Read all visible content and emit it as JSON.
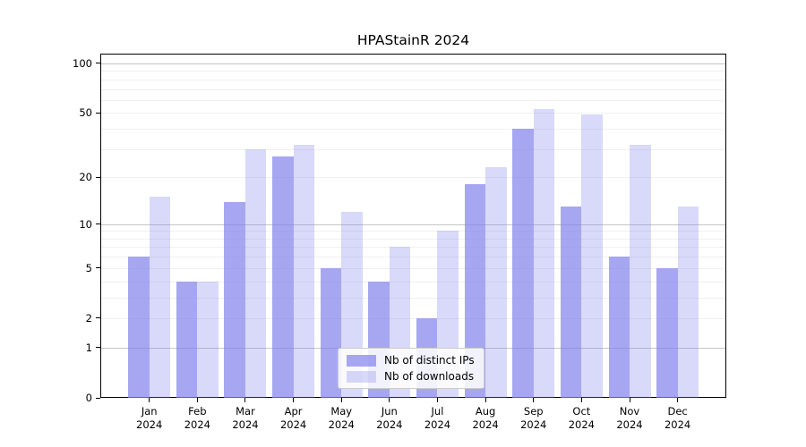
{
  "title": "HPAStainR 2024",
  "chart_data": {
    "type": "bar",
    "title": "HPAStainR 2024",
    "year": "2024",
    "categories": [
      "Jan",
      "Feb",
      "Mar",
      "Apr",
      "May",
      "Jun",
      "Jul",
      "Aug",
      "Sep",
      "Oct",
      "Nov",
      "Dec"
    ],
    "series": [
      {
        "name": "Nb of distinct IPs",
        "color": "rgba(130,130,235,0.7)",
        "values": [
          6,
          4,
          14,
          27,
          5,
          4,
          2,
          18,
          40,
          13,
          6,
          5
        ]
      },
      {
        "name": "Nb of downloads",
        "color": "rgba(130,130,235,0.3)",
        "values": [
          15,
          4,
          30,
          32,
          12,
          7,
          9,
          23,
          53,
          49,
          32,
          13
        ]
      }
    ],
    "xlabel": "",
    "ylabel": "",
    "y_scale": "log1p",
    "ylim": [
      0,
      115
    ],
    "y_ticks": [
      100,
      50,
      20,
      10,
      5,
      2,
      1,
      0
    ],
    "grid": {
      "major": [
        1,
        10,
        100
      ],
      "minor": [
        2,
        3,
        4,
        5,
        6,
        7,
        8,
        9,
        20,
        30,
        40,
        50,
        60,
        70,
        80,
        90
      ],
      "visible": true
    },
    "legend_position": "bottom-center"
  }
}
